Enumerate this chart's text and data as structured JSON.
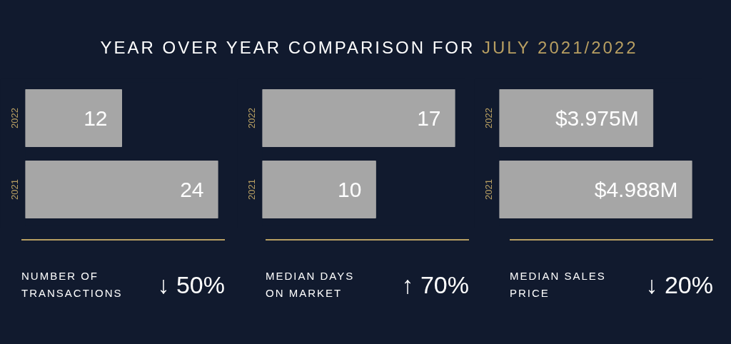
{
  "chart_data": [
    {
      "type": "bar",
      "orientation": "horizontal",
      "title": "YEAR OVER YEAR COMPARISON FOR JULY 2021/2022",
      "categories": [
        "2022",
        "2021"
      ],
      "values": [
        12,
        24
      ],
      "value_labels": [
        "12",
        "24"
      ],
      "color": "#a6a6a6",
      "annotations": [
        "NUMBER OF\nTRANSACTIONS",
        "↓ 50%"
      ]
    },
    {
      "type": "bar",
      "orientation": "horizontal",
      "categories": [
        "2022",
        "2021"
      ],
      "values": [
        17,
        10
      ],
      "value_labels": [
        "17",
        "10"
      ],
      "color": "#a6a6a6",
      "annotations": [
        "MEDIAN DAYS\nON MARKET",
        "↑ 70%"
      ]
    },
    {
      "type": "bar",
      "orientation": "horizontal",
      "categories": [
        "2022",
        "2021"
      ],
      "values": [
        3.975,
        4.988
      ],
      "value_labels": [
        "$3.975M",
        "$4.988M"
      ],
      "color": "#a6a6a6",
      "annotations": [
        "MEDIAN SALES\nPRICE",
        "↓ 20%"
      ]
    }
  ]
}
